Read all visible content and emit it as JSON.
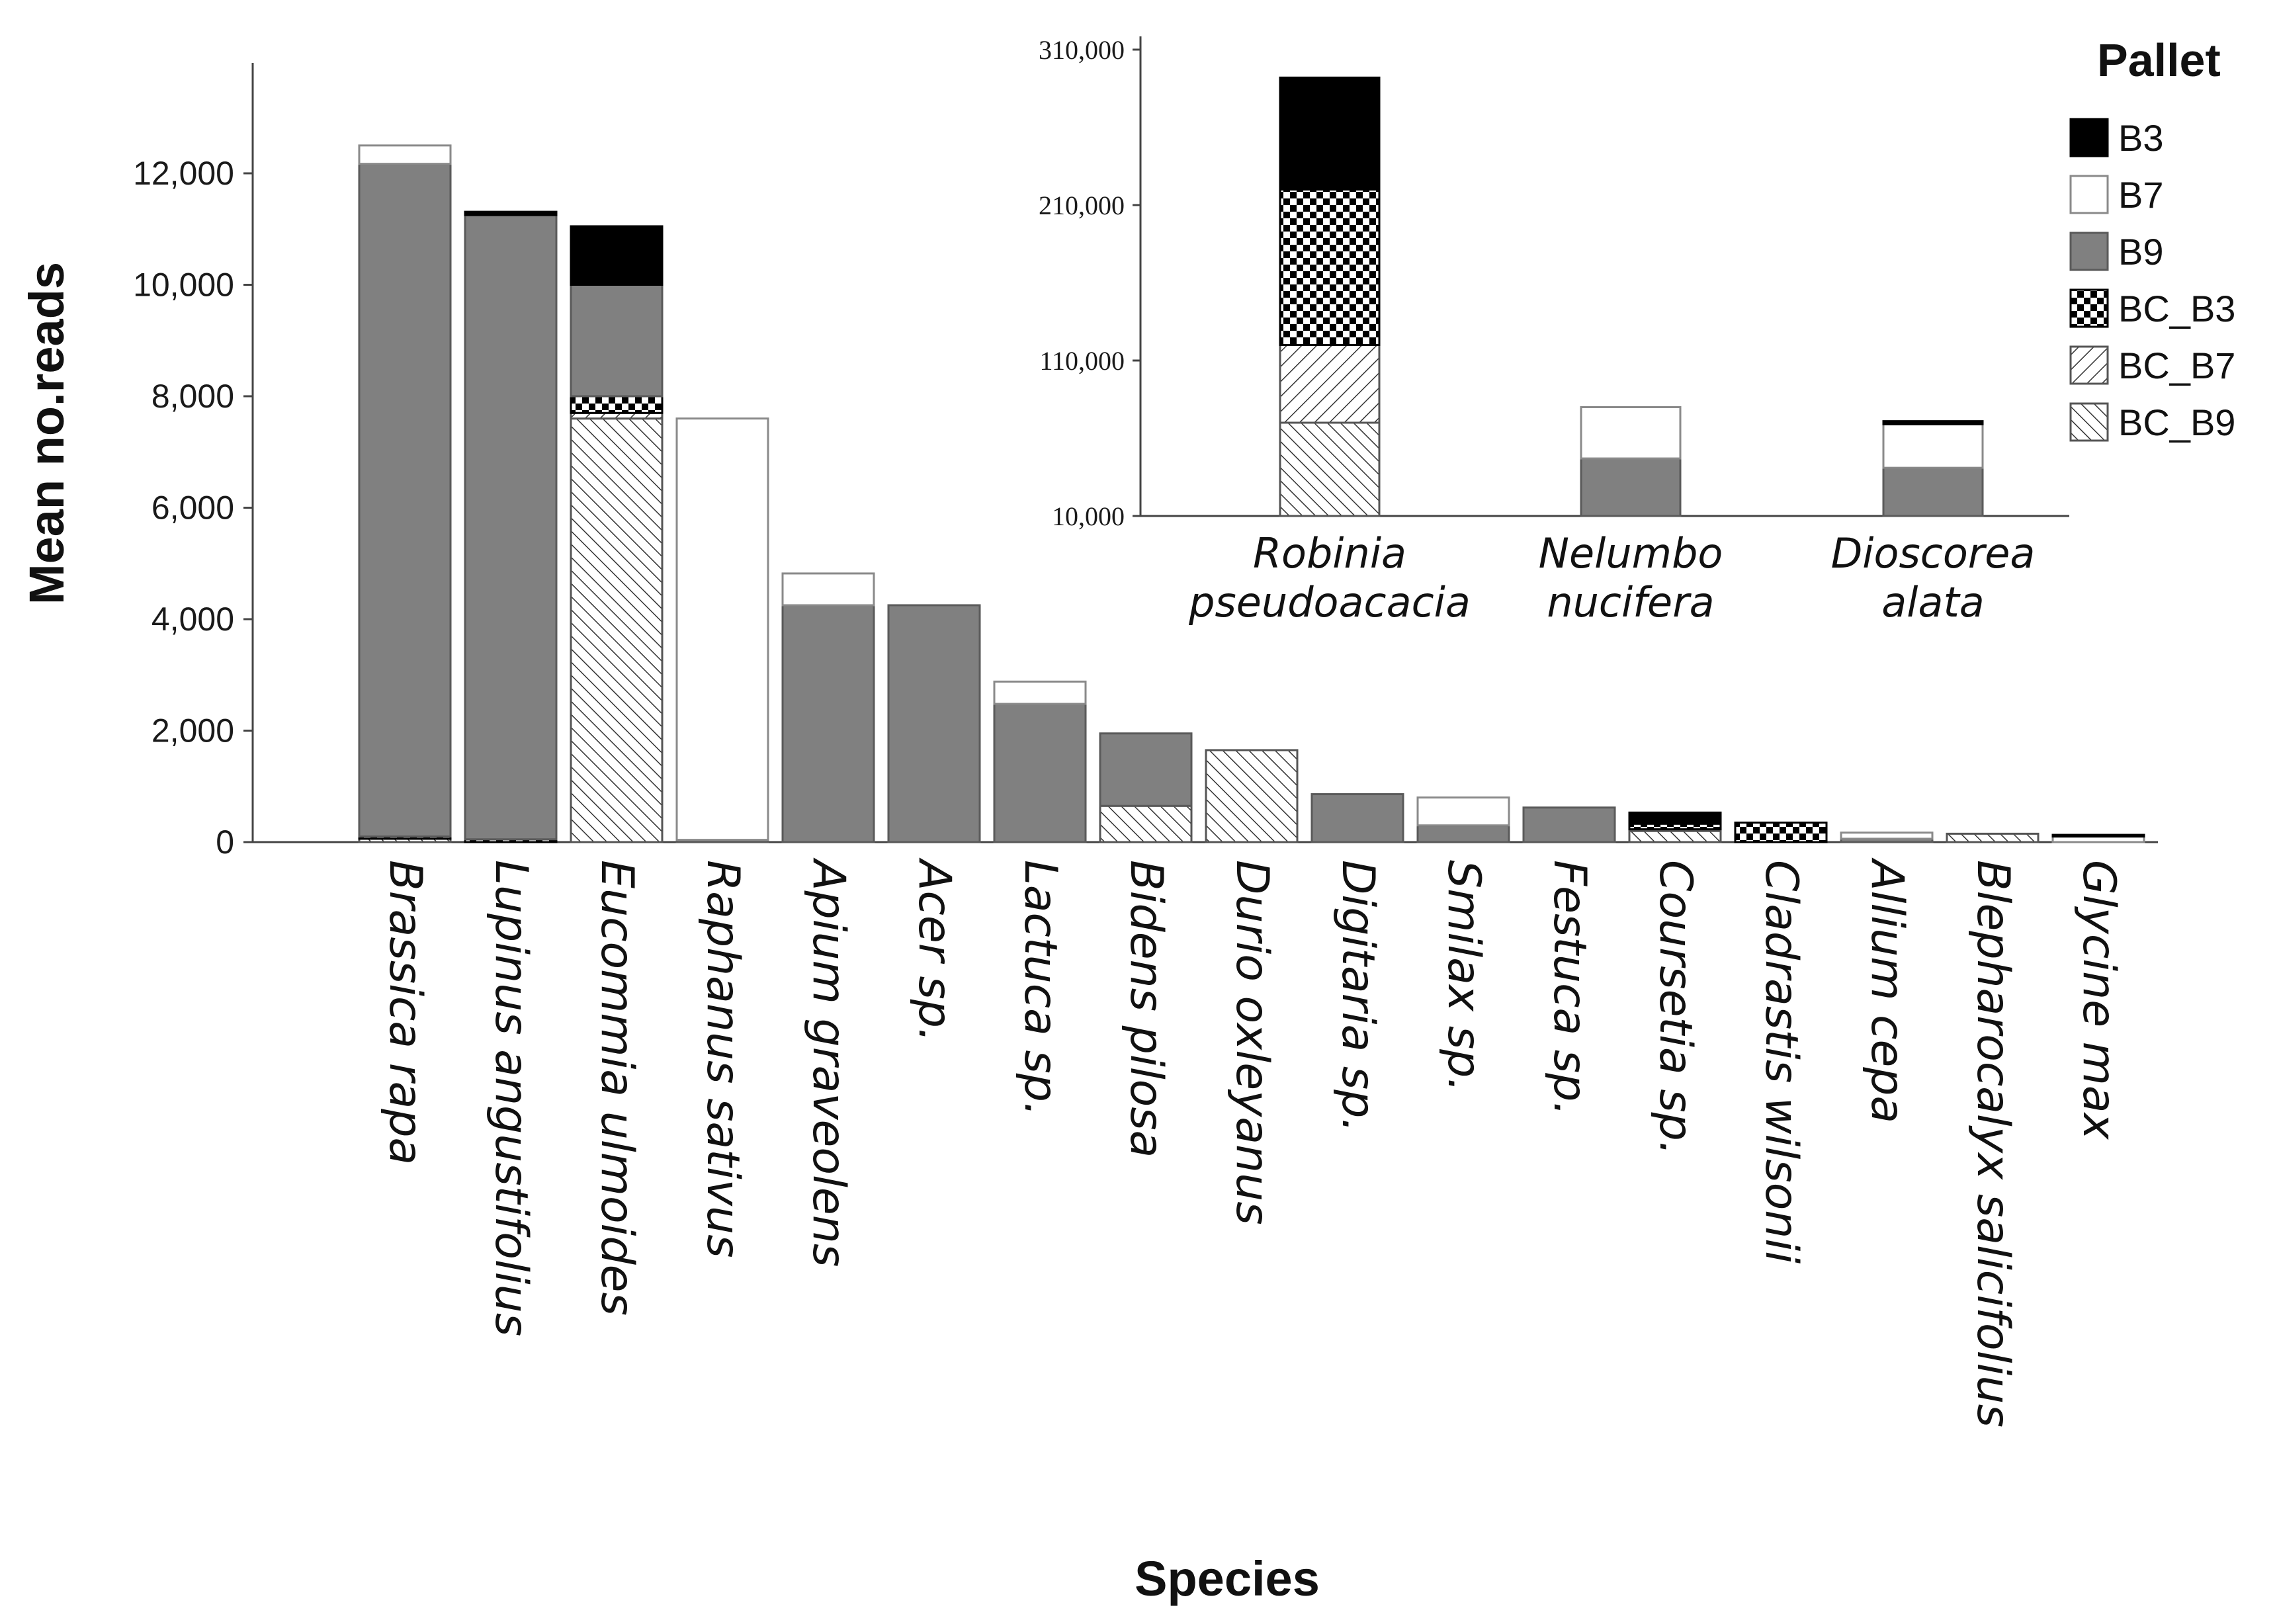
{
  "chart_data": [
    {
      "type": "bar",
      "stacked": true,
      "xlabel": "Species",
      "ylabel": "Mean no.reads",
      "ylim": [
        0,
        14000
      ],
      "yticks": [
        0,
        2000,
        4000,
        6000,
        8000,
        10000,
        12000
      ],
      "ytick_labels": [
        "0",
        "2,000",
        "4,000",
        "6,000",
        "8,000",
        "10,000",
        "12,000"
      ],
      "categories": [
        "Brassica rapa",
        "Lupinus angustifolius",
        "Eucommia ulmoides",
        "Raphanus sativus",
        "Apium graveolens",
        "Acer sp.",
        "Lactuca sp.",
        "Bidens pilosa",
        "Durio oxleyanus",
        "Digitaria sp.",
        "Smilax sp.",
        "Festuca sp.",
        "Coursetia sp.",
        "Cladrastis wilsonii",
        "Allium cepa",
        "Blepharocalyx salicifolius",
        "Glycine max"
      ],
      "series": [
        {
          "name": "BC_B9",
          "values": [
            60,
            0,
            7600,
            0,
            0,
            0,
            0,
            650,
            1650,
            0,
            0,
            0,
            200,
            0,
            0,
            150,
            0
          ]
        },
        {
          "name": "BC_B7",
          "values": [
            0,
            0,
            100,
            0,
            0,
            0,
            0,
            0,
            0,
            0,
            0,
            0,
            30,
            0,
            0,
            0,
            0
          ]
        },
        {
          "name": "BC_B3",
          "values": [
            40,
            50,
            300,
            0,
            0,
            0,
            0,
            0,
            0,
            0,
            0,
            0,
            100,
            350,
            0,
            0,
            0
          ]
        },
        {
          "name": "B9",
          "values": [
            12070,
            11200,
            2000,
            40,
            4250,
            4250,
            2480,
            1300,
            0,
            860,
            300,
            620,
            0,
            0,
            60,
            0,
            0
          ]
        },
        {
          "name": "B7",
          "values": [
            330,
            0,
            0,
            7560,
            570,
            0,
            400,
            0,
            0,
            0,
            500,
            0,
            0,
            0,
            110,
            0,
            100
          ]
        },
        {
          "name": "B3",
          "values": [
            0,
            60,
            1050,
            0,
            0,
            0,
            0,
            0,
            0,
            0,
            0,
            0,
            200,
            0,
            0,
            0,
            30
          ]
        }
      ]
    },
    {
      "type": "bar",
      "stacked": true,
      "inset": true,
      "ylim": [
        10000,
        310000
      ],
      "yticks": [
        10000,
        110000,
        210000,
        310000
      ],
      "ytick_labels": [
        "10,000",
        "110,000",
        "210,000",
        "310,000"
      ],
      "categories": [
        "Robinia pseudoacacia",
        "Nelumbo nucifera",
        "Dioscorea alata"
      ],
      "category_lines": [
        [
          "Robinia",
          "pseudoacacia"
        ],
        [
          "Nelumbo",
          "nucifera"
        ],
        [
          "Dioscorea",
          "alata"
        ]
      ],
      "series": [
        {
          "name": "BC_B9",
          "values": [
            60000,
            0,
            0
          ]
        },
        {
          "name": "BC_B7",
          "values": [
            50000,
            0,
            0
          ]
        },
        {
          "name": "BC_B3",
          "values": [
            100000,
            0,
            0
          ]
        },
        {
          "name": "B9",
          "values": [
            0,
            37000,
            31000
          ]
        },
        {
          "name": "B7",
          "values": [
            0,
            33000,
            28000
          ]
        },
        {
          "name": "B3",
          "values": [
            72000,
            0,
            2000
          ]
        }
      ]
    }
  ],
  "legend": {
    "title": "Pallet",
    "items": [
      {
        "name": "B3",
        "label": "B3"
      },
      {
        "name": "B7",
        "label": "B7"
      },
      {
        "name": "B9",
        "label": "B9"
      },
      {
        "name": "BC_B3",
        "label": "BC_B3"
      },
      {
        "name": "BC_B7",
        "label": "BC_B7"
      },
      {
        "name": "BC_B9",
        "label": "BC_B9"
      }
    ]
  }
}
